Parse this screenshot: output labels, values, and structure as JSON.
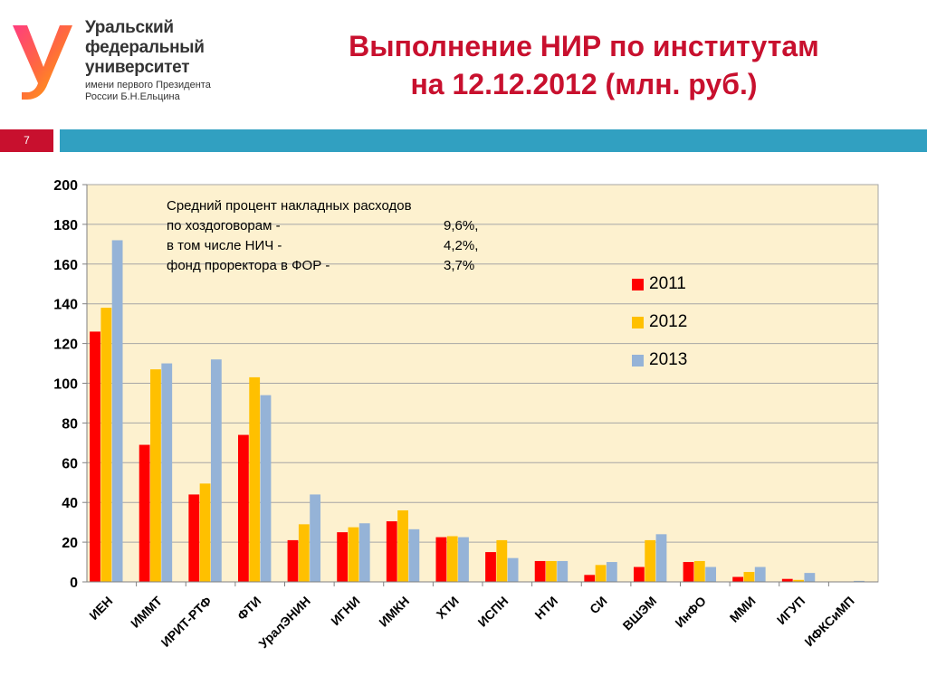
{
  "header": {
    "logo_lines": [
      "Уральский",
      "федеральный",
      "университет"
    ],
    "logo_sub_lines": [
      "имени первого Президента",
      "России Б.Н.Ельцина"
    ],
    "title_line1": "Выполнение НИР по  институтам",
    "title_line2": "на 12.12.2012 (млн. руб.)",
    "page_number": "7"
  },
  "colors": {
    "brand_red": "#c8102e",
    "accent_blue": "#31a0c1",
    "plot_background": "#fdf1cf",
    "series_2011": "#ff0000",
    "series_2012": "#ffc000",
    "series_2013": "#95b3d7"
  },
  "annotation": {
    "line1": "Средний процент накладных расходов",
    "row2_label": "по хоздоговорам -",
    "row2_value": "9,6%,",
    "row3_label": "в том числе НИЧ -",
    "row3_value": "4,2%,",
    "row4_label": "фонд проректора в ФОР -",
    "row4_value": "3,7%"
  },
  "chart_data": {
    "type": "bar",
    "title": "Выполнение НИР по  институтам на 12.12.2012 (млн. руб.)",
    "xlabel": "",
    "ylabel": "",
    "ylim": [
      0,
      200
    ],
    "yticks": [
      0,
      20,
      40,
      60,
      80,
      100,
      120,
      140,
      160,
      180,
      200
    ],
    "grid": true,
    "legend_position": "right",
    "categories": [
      "ИЕН",
      "ИММТ",
      "ИРИТ-РТФ",
      "ФТИ",
      "УралЭНИН",
      "ИГНИ",
      "ИМКН",
      "ХТИ",
      "ИСПН",
      "НТИ",
      "СИ",
      "ВШЭМ",
      "ИнФО",
      "ММИ",
      "ИГУП",
      "ИФКСиМП"
    ],
    "series": [
      {
        "name": "2011",
        "color": "#ff0000",
        "values": [
          126,
          69,
          44,
          74,
          21,
          25,
          30.5,
          22.5,
          15,
          10.5,
          3.5,
          7.5,
          10,
          2.5,
          1.5,
          0
        ]
      },
      {
        "name": "2012",
        "color": "#ffc000",
        "values": [
          138,
          107,
          49.5,
          103,
          29,
          27.5,
          36,
          23,
          21,
          10.5,
          8.5,
          21,
          10.5,
          5,
          1,
          0
        ]
      },
      {
        "name": "2013",
        "color": "#95b3d7",
        "values": [
          172,
          110,
          112,
          94,
          44,
          29.5,
          26.5,
          22.5,
          12,
          10.5,
          10,
          24,
          7.5,
          7.5,
          4.5,
          0.5
        ]
      }
    ]
  }
}
